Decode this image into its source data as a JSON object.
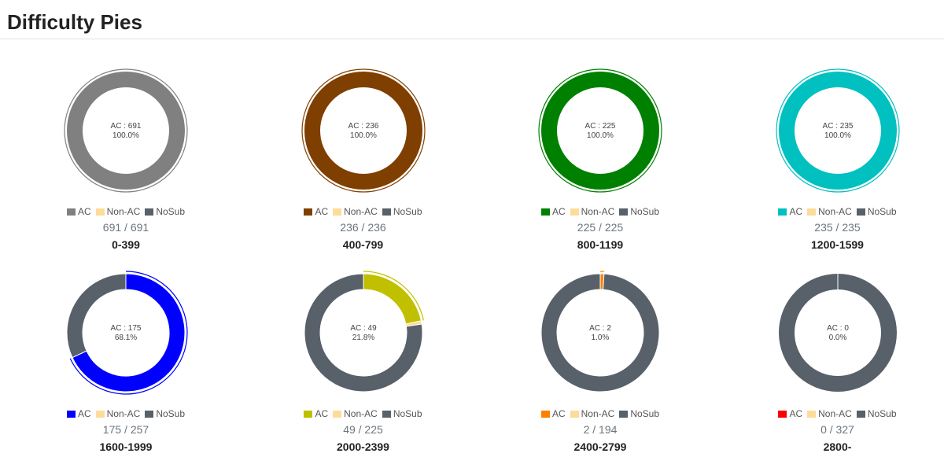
{
  "page_title": "Difficulty Pies",
  "legend_labels": {
    "ac": "AC",
    "nonac": "Non-AC",
    "nosub": "NoSub"
  },
  "colors": {
    "nonac": "#fddc9a",
    "nosub": "#58606a"
  },
  "chart_data": [
    {
      "type": "pie",
      "range": "0-399",
      "ac": 691,
      "nonac": 0,
      "total": 691,
      "center_ac": "AC : 691",
      "center_pct": "100.0%",
      "count_label": "691 / 691",
      "ac_color": "#808080"
    },
    {
      "type": "pie",
      "range": "400-799",
      "ac": 236,
      "nonac": 0,
      "total": 236,
      "center_ac": "AC : 236",
      "center_pct": "100.0%",
      "count_label": "236 / 236",
      "ac_color": "#7f3f00"
    },
    {
      "type": "pie",
      "range": "800-1199",
      "ac": 225,
      "nonac": 0,
      "total": 225,
      "center_ac": "AC : 225",
      "center_pct": "100.0%",
      "count_label": "225 / 225",
      "ac_color": "#008000"
    },
    {
      "type": "pie",
      "range": "1200-1599",
      "ac": 235,
      "nonac": 0,
      "total": 235,
      "center_ac": "AC : 235",
      "center_pct": "100.0%",
      "count_label": "235 / 235",
      "ac_color": "#00c0c0"
    },
    {
      "type": "pie",
      "range": "1600-1999",
      "ac": 175,
      "nonac": 0,
      "total": 257,
      "center_ac": "AC : 175",
      "center_pct": "68.1%",
      "count_label": "175 / 257",
      "ac_color": "#0000ff"
    },
    {
      "type": "pie",
      "range": "2000-2399",
      "ac": 49,
      "nonac": 2,
      "total": 225,
      "center_ac": "AC : 49",
      "center_pct": "21.8%",
      "count_label": "49 / 225",
      "ac_color": "#c0c000"
    },
    {
      "type": "pie",
      "range": "2400-2799",
      "ac": 2,
      "nonac": 0,
      "total": 194,
      "center_ac": "AC : 2",
      "center_pct": "1.0%",
      "count_label": "2 / 194",
      "ac_color": "#ff8000"
    },
    {
      "type": "pie",
      "range": "2800-",
      "ac": 0,
      "nonac": 0,
      "total": 327,
      "center_ac": "AC : 0",
      "center_pct": "0.0%",
      "count_label": "0 / 327",
      "ac_color": "#ff0000"
    }
  ]
}
